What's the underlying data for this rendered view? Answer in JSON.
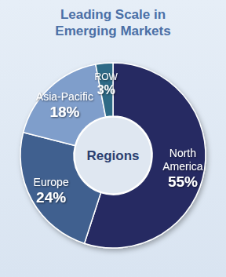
{
  "chart_data": {
    "type": "pie",
    "title": "Leading Scale in Emerging Markets",
    "categories": [
      "North America",
      "Europe",
      "Asia-Pacific",
      "ROW"
    ],
    "values": [
      55,
      24,
      18,
      3
    ],
    "value_labels": [
      "55%",
      "24%",
      "18%",
      "3%"
    ],
    "colors": [
      "#252c62",
      "#40608f",
      "#7f9ecb",
      "#2f6b86"
    ],
    "data_labels": true,
    "annotations": [
      "Regions"
    ]
  }
}
